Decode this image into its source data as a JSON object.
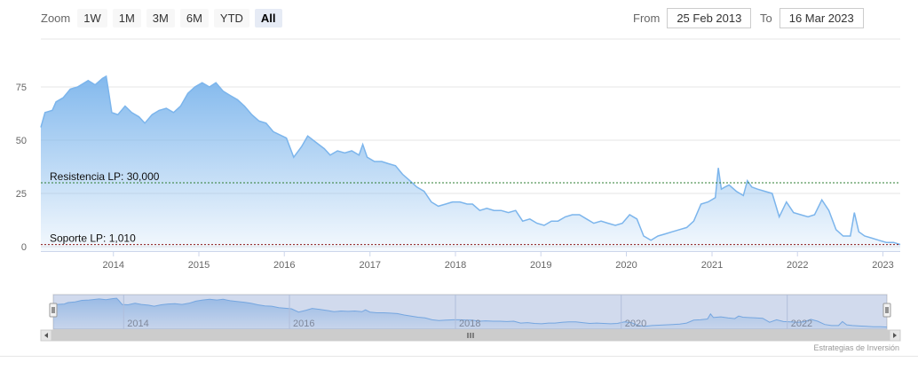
{
  "zoom": {
    "label": "Zoom",
    "buttons": [
      "1W",
      "1M",
      "3M",
      "6M",
      "YTD",
      "All"
    ],
    "active": "All"
  },
  "range": {
    "from_label": "From",
    "from_value": "25 Feb 2013",
    "to_label": "To",
    "to_value": "16 Mar 2023"
  },
  "credit": "Estrategias de Inversión",
  "colors": {
    "line": "#7cb5ec",
    "fill_top": "#7cb5ec",
    "resistance": "#2e7d32",
    "support": "#8b1a1a"
  },
  "chart_data": {
    "type": "area",
    "title": "",
    "xlabel": "",
    "ylabel": "",
    "xlim": [
      "2013-02-25",
      "2023-03-16"
    ],
    "ylim": [
      0,
      100
    ],
    "y_ticks": [
      0,
      25,
      50,
      75
    ],
    "x_ticks": [
      "2014",
      "2015",
      "2016",
      "2017",
      "2018",
      "2019",
      "2020",
      "2021",
      "2022",
      "2023"
    ],
    "navigator_ticks": [
      "2014",
      "2016",
      "2018",
      "2020",
      "2022"
    ],
    "grid": true,
    "annotations": [
      {
        "label": "Resistencia LP: 30,000",
        "value": 30
      },
      {
        "label": "Soporte LP: 1,010",
        "value": 1.01
      }
    ],
    "series": [
      {
        "points": [
          [
            "2013-02-25",
            56
          ],
          [
            "2013-03-15",
            63
          ],
          [
            "2013-04-15",
            64
          ],
          [
            "2013-05-01",
            68
          ],
          [
            "2013-06-01",
            70
          ],
          [
            "2013-07-01",
            74
          ],
          [
            "2013-08-01",
            75
          ],
          [
            "2013-09-15",
            78
          ],
          [
            "2013-10-15",
            76
          ],
          [
            "2013-11-15",
            79
          ],
          [
            "2013-12-01",
            80
          ],
          [
            "2013-12-10",
            74
          ],
          [
            "2013-12-25",
            63
          ],
          [
            "2014-01-20",
            62
          ],
          [
            "2014-02-20",
            66
          ],
          [
            "2014-03-20",
            63
          ],
          [
            "2014-04-20",
            61
          ],
          [
            "2014-05-15",
            58
          ],
          [
            "2014-06-15",
            62
          ],
          [
            "2014-07-15",
            64
          ],
          [
            "2014-08-15",
            65
          ],
          [
            "2014-09-15",
            63
          ],
          [
            "2014-10-15",
            66
          ],
          [
            "2014-11-15",
            72
          ],
          [
            "2014-12-15",
            75
          ],
          [
            "2015-01-15",
            77
          ],
          [
            "2015-02-15",
            75
          ],
          [
            "2015-03-15",
            77
          ],
          [
            "2015-04-15",
            73
          ],
          [
            "2015-05-15",
            71
          ],
          [
            "2015-06-15",
            69
          ],
          [
            "2015-07-15",
            66
          ],
          [
            "2015-08-15",
            62
          ],
          [
            "2015-09-15",
            59
          ],
          [
            "2015-10-15",
            58
          ],
          [
            "2015-11-15",
            54
          ],
          [
            "2016-01-10",
            51
          ],
          [
            "2016-02-10",
            42
          ],
          [
            "2016-03-15",
            47
          ],
          [
            "2016-04-10",
            52
          ],
          [
            "2016-05-15",
            49
          ],
          [
            "2016-06-20",
            46
          ],
          [
            "2016-07-15",
            43
          ],
          [
            "2016-08-15",
            45
          ],
          [
            "2016-09-15",
            44
          ],
          [
            "2016-10-15",
            45
          ],
          [
            "2016-11-15",
            43
          ],
          [
            "2016-12-01",
            48
          ],
          [
            "2016-12-20",
            42
          ],
          [
            "2017-01-20",
            40
          ],
          [
            "2017-02-20",
            40
          ],
          [
            "2017-03-20",
            39
          ],
          [
            "2017-04-20",
            38
          ],
          [
            "2017-05-20",
            34
          ],
          [
            "2017-06-20",
            31
          ],
          [
            "2017-07-20",
            28
          ],
          [
            "2017-08-20",
            26
          ],
          [
            "2017-09-20",
            21
          ],
          [
            "2017-10-20",
            19
          ],
          [
            "2017-11-20",
            20
          ],
          [
            "2017-12-20",
            21
          ],
          [
            "2018-01-20",
            21
          ],
          [
            "2018-02-20",
            20
          ],
          [
            "2018-03-15",
            20
          ],
          [
            "2018-04-15",
            17
          ],
          [
            "2018-05-15",
            18
          ],
          [
            "2018-06-15",
            17
          ],
          [
            "2018-07-15",
            17
          ],
          [
            "2018-08-15",
            16
          ],
          [
            "2018-09-15",
            17
          ],
          [
            "2018-10-15",
            12
          ],
          [
            "2018-11-15",
            13
          ],
          [
            "2018-12-15",
            11
          ],
          [
            "2019-01-15",
            10
          ],
          [
            "2019-02-15",
            12
          ],
          [
            "2019-03-15",
            12
          ],
          [
            "2019-04-15",
            14
          ],
          [
            "2019-05-15",
            15
          ],
          [
            "2019-06-15",
            15
          ],
          [
            "2019-07-15",
            13
          ],
          [
            "2019-08-15",
            11
          ],
          [
            "2019-09-15",
            12
          ],
          [
            "2019-10-15",
            11
          ],
          [
            "2019-11-15",
            10
          ],
          [
            "2019-12-15",
            11
          ],
          [
            "2020-01-15",
            15
          ],
          [
            "2020-02-15",
            13
          ],
          [
            "2020-03-15",
            5
          ],
          [
            "2020-04-15",
            3
          ],
          [
            "2020-05-15",
            5
          ],
          [
            "2020-06-15",
            6
          ],
          [
            "2020-07-15",
            7
          ],
          [
            "2020-08-15",
            8
          ],
          [
            "2020-09-15",
            9
          ],
          [
            "2020-10-15",
            12
          ],
          [
            "2020-11-15",
            20
          ],
          [
            "2020-12-15",
            21
          ],
          [
            "2021-01-15",
            23
          ],
          [
            "2021-01-28",
            37
          ],
          [
            "2021-02-10",
            27
          ],
          [
            "2021-02-25",
            28
          ],
          [
            "2021-03-15",
            29
          ],
          [
            "2021-04-15",
            26
          ],
          [
            "2021-05-15",
            24
          ],
          [
            "2021-06-01",
            31
          ],
          [
            "2021-06-20",
            28
          ],
          [
            "2021-07-15",
            27
          ],
          [
            "2021-08-15",
            26
          ],
          [
            "2021-09-15",
            25
          ],
          [
            "2021-10-15",
            14
          ],
          [
            "2021-11-15",
            21
          ],
          [
            "2021-12-15",
            16
          ],
          [
            "2022-01-15",
            15
          ],
          [
            "2022-02-15",
            14
          ],
          [
            "2022-03-15",
            15
          ],
          [
            "2022-04-15",
            22
          ],
          [
            "2022-05-15",
            17
          ],
          [
            "2022-06-15",
            8
          ],
          [
            "2022-07-15",
            5
          ],
          [
            "2022-08-15",
            5
          ],
          [
            "2022-09-01",
            16
          ],
          [
            "2022-09-20",
            7
          ],
          [
            "2022-10-15",
            5
          ],
          [
            "2022-11-15",
            4
          ],
          [
            "2022-12-15",
            3
          ],
          [
            "2023-01-15",
            2
          ],
          [
            "2023-02-15",
            2
          ],
          [
            "2023-03-16",
            1
          ]
        ]
      }
    ]
  }
}
